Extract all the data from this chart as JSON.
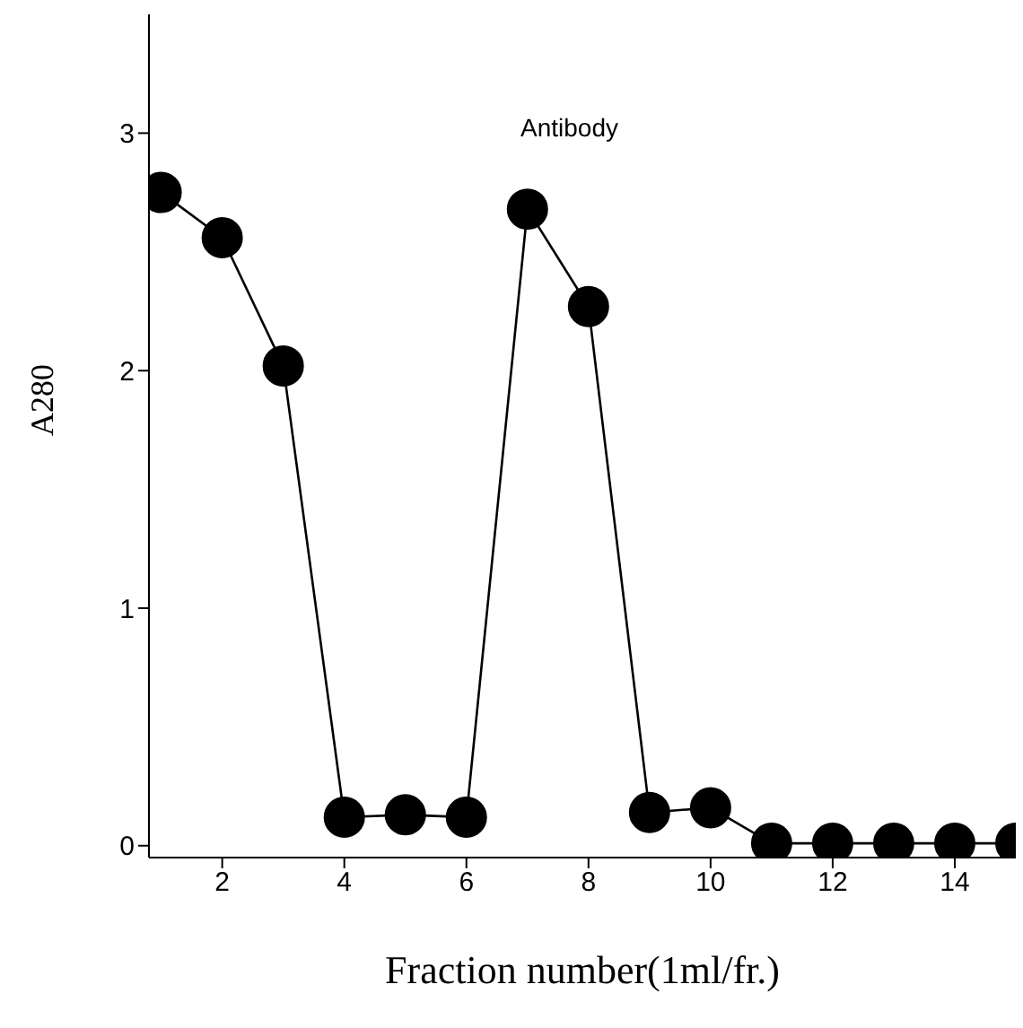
{
  "chart_data": {
    "type": "line",
    "xlabel": "Fraction number(1ml/fr.)",
    "ylabel": "A280",
    "x": [
      1,
      2,
      3,
      4,
      5,
      6,
      7,
      8,
      9,
      10,
      11,
      12,
      13,
      14,
      15
    ],
    "series": [
      {
        "color": "#000000",
        "values": [
          2.75,
          2.56,
          2.02,
          0.12,
          0.13,
          0.12,
          2.68,
          2.27,
          0.14,
          0.16,
          0.01,
          0.01,
          0.01,
          0.01,
          0.01
        ]
      }
    ],
    "xlim": [
      0.8,
      15
    ],
    "xticks": [
      2,
      4,
      6,
      8,
      10,
      12,
      14
    ],
    "ylim": [
      -0.05,
      3.5
    ],
    "yticks": [
      0,
      1,
      2,
      3
    ],
    "annotations": [
      "Antibody"
    ],
    "grid": false,
    "legend": false,
    "marker": "circle",
    "line_style": "solid"
  }
}
